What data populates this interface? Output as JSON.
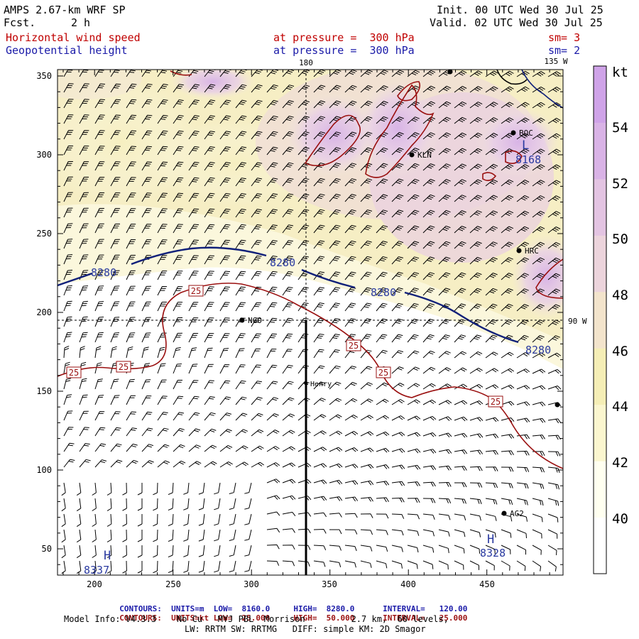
{
  "header": {
    "model": "AMPS 2.67-km WRF SP",
    "fcst_label": "Fcst.",
    "fcst_value": "2 h",
    "init": "Init. 00 UTC Wed 30 Jul 25",
    "valid": "Valid. 02 UTC Wed 30 Jul 25",
    "field1_name": "Horizontal wind speed",
    "field1_level": "at pressure =  300 hPa",
    "field1_sm": "sm= 3",
    "field2_name": "Geopotential height",
    "field2_level": "at pressure =  300 hPa",
    "field2_sm": "sm= 2"
  },
  "map": {
    "lon_labels": {
      "top_180": "180",
      "top_135w": "135 W",
      "right_90w": "90 W"
    },
    "x_ticks": [
      "200",
      "250",
      "300",
      "350",
      "400",
      "450"
    ],
    "y_ticks": [
      "350",
      "300",
      "250",
      "200",
      "150",
      "100",
      "50"
    ],
    "stations": [
      {
        "name": "KLN"
      },
      {
        "name": "BOC"
      },
      {
        "name": "HRC"
      },
      {
        "name": "NGO"
      },
      {
        "name": "Henry"
      },
      {
        "name": "AG2"
      }
    ],
    "height_contour_labels": [
      "8280",
      "8280",
      "8280",
      "8280"
    ],
    "speed_contour_labels": [
      "25",
      "25",
      "25",
      "25",
      "25",
      "25"
    ],
    "low_center": {
      "letter": "L",
      "value": "8168"
    },
    "high_centers": [
      {
        "letter": "H",
        "value": "8328"
      },
      {
        "letter": "H",
        "value": "8337"
      }
    ],
    "colors": {
      "height_contour": "#10207a",
      "speed_contour": "#9a1010",
      "barb": "#000000"
    }
  },
  "colorbar": {
    "unit": "kt",
    "labels": [
      "54",
      "52",
      "50",
      "48",
      "46",
      "44",
      "42",
      "40"
    ],
    "colors": [
      "#ffffff",
      "#fffff0",
      "#fbf6cf",
      "#f5eeb6",
      "#f3e4cc",
      "#ecd4dc",
      "#e3c4e2",
      "#d9b3e6",
      "#cfa3e8"
    ]
  },
  "footer": {
    "contours_height": {
      "label": "CONTOURS:",
      "units": "UNITS=m",
      "low": "LOW=  8160.0",
      "high": "HIGH=  8280.0",
      "interval": "INTERVAL=   120.00"
    },
    "contours_speed": {
      "label": "CONTOURS:",
      "units": "UNITS=kt",
      "low": "LOW=  25.000",
      "high": "HIGH=  50.000",
      "interval": "INTERVAL=   25.000"
    },
    "model_info_1": "Model Info: V4.3.3    No Cu   MYJ PBL  Morrison         2.7 km,  60 levels,",
    "model_info_2": "LW: RRTM SW: RRTMG   DIFF: simple KM: 2D Smagor"
  }
}
